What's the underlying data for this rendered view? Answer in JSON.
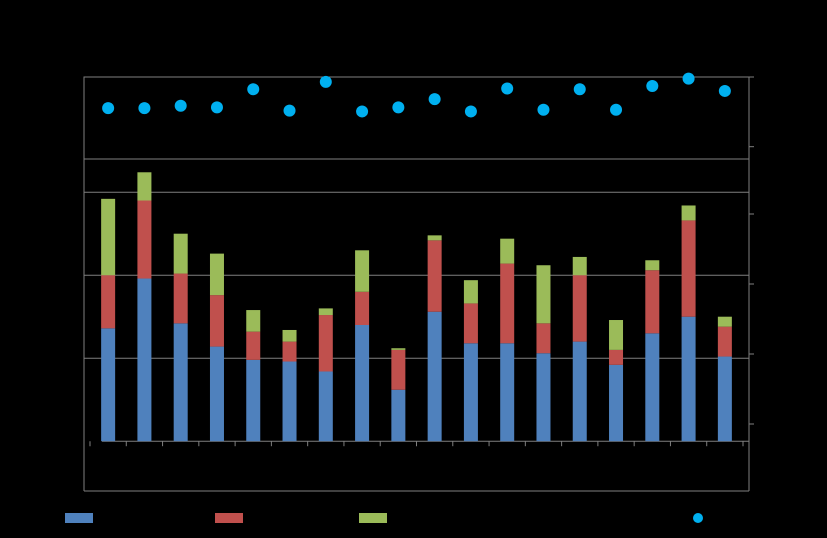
{
  "chart_data": {
    "type": "bar",
    "stacked": true,
    "categories": [
      "",
      "",
      "",
      "",
      "",
      "",
      "",
      "",
      "",
      "",
      "",
      "",
      "",
      "",
      "",
      "",
      "",
      ""
    ],
    "series": [
      {
        "color": "#4F81BD",
        "values": [
          68,
          98,
          71,
          57,
          49,
          48,
          42,
          70,
          31,
          78,
          59,
          59,
          53,
          60,
          46,
          65,
          75,
          51
        ]
      },
      {
        "color": "#C0504D",
        "values": [
          32,
          47,
          30,
          31,
          17,
          12,
          34,
          20,
          24,
          43,
          24,
          48,
          18,
          40,
          9,
          38,
          58,
          18
        ]
      },
      {
        "color": "#9BBB59",
        "values": [
          46,
          17,
          24,
          25,
          13,
          7,
          4,
          25,
          1,
          3,
          14,
          15,
          35,
          11,
          18,
          6,
          9,
          6
        ]
      }
    ],
    "markers": {
      "color": "#00B0F0",
      "values": [
        62,
        62,
        65,
        63,
        85,
        59,
        94,
        58,
        63,
        73,
        58,
        86,
        60,
        85,
        60,
        89,
        98,
        83
      ]
    },
    "ylim": [
      -30,
      170
    ],
    "marker_ylim": [
      0,
      100
    ],
    "legend": {
      "placement": "bottom",
      "swatches": [
        "#4F81BD",
        "#C0504D",
        "#9BBB59",
        "#00B0F0"
      ]
    },
    "grid": true,
    "colors": {
      "background": "#000000",
      "axis": "#7F7F7F",
      "grid": "#7F7F7F"
    }
  }
}
